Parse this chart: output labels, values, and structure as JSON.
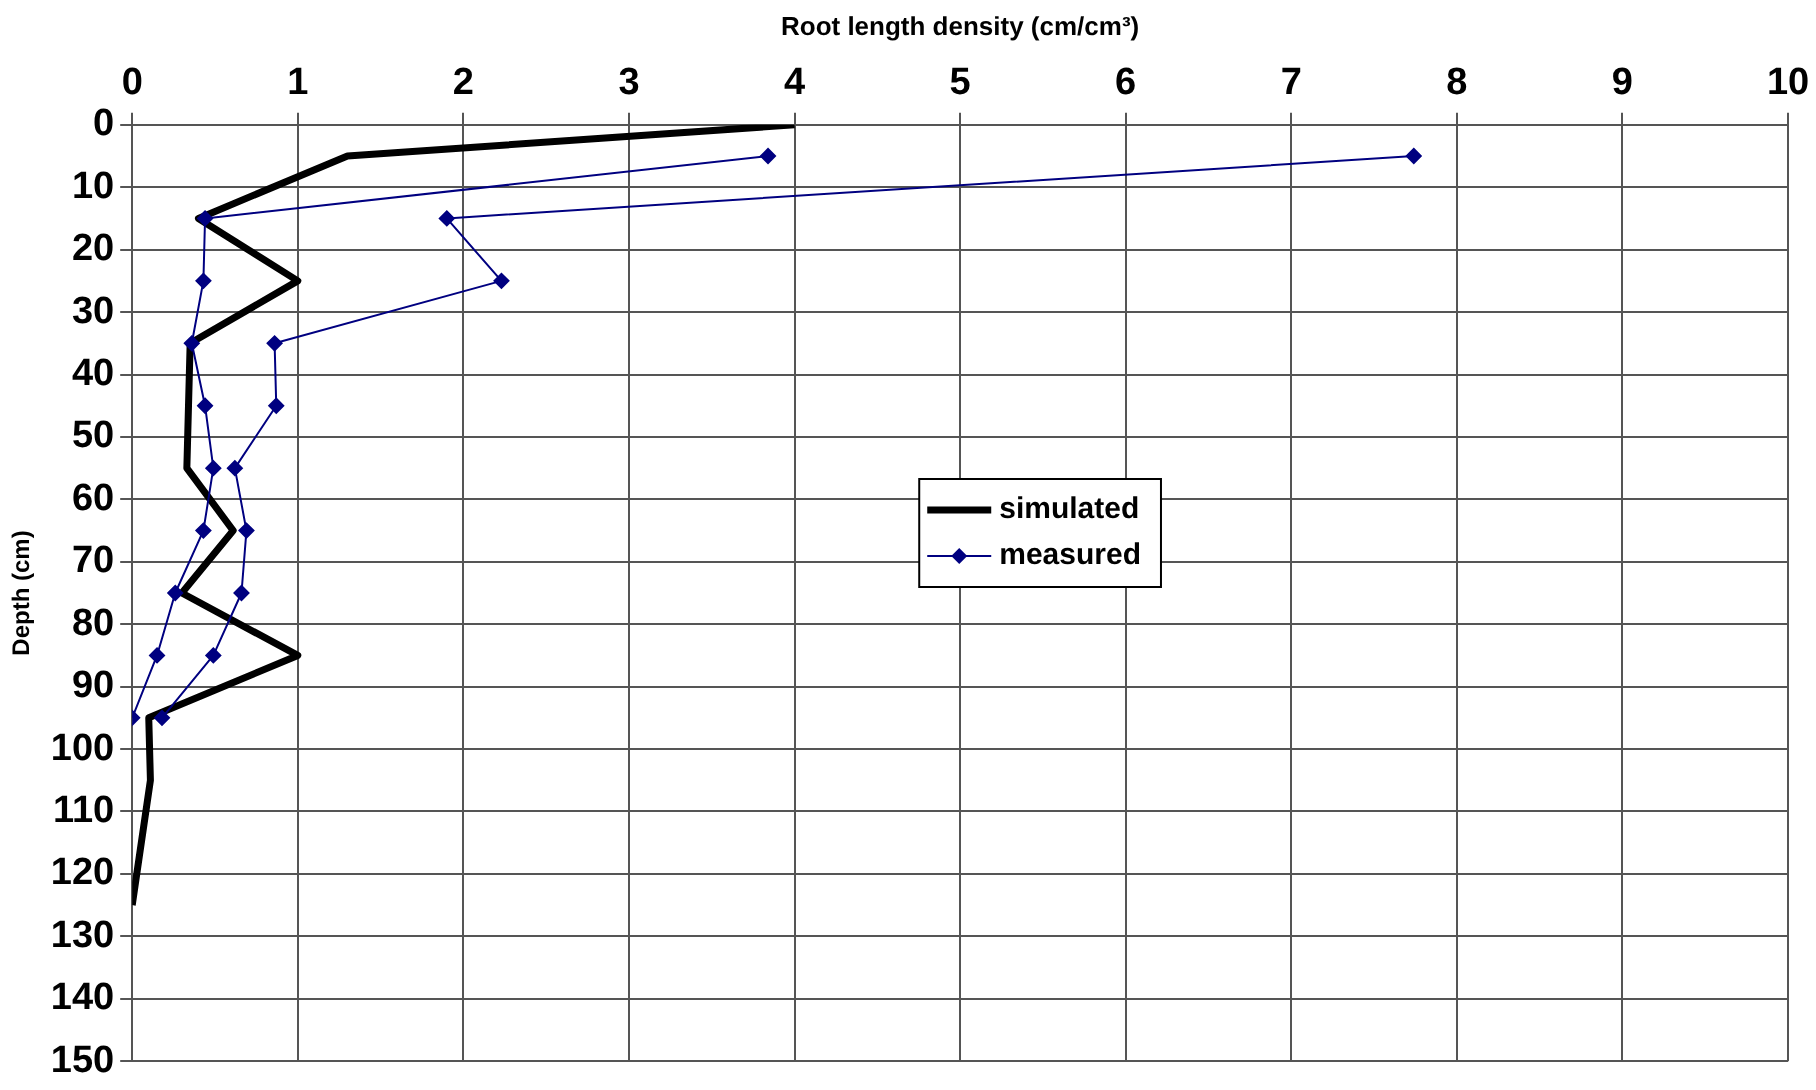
{
  "chart_data": {
    "type": "line",
    "xlabel": "Root length density (cm/cm³)",
    "ylabel": "Depth (cm)",
    "xlim": [
      0,
      10
    ],
    "xticks": [
      0,
      1,
      2,
      3,
      4,
      5,
      6,
      7,
      8,
      9,
      10
    ],
    "ylim": [
      150,
      0
    ],
    "yticks": [
      0,
      10,
      20,
      30,
      40,
      50,
      60,
      70,
      80,
      90,
      100,
      110,
      120,
      130,
      140,
      150
    ],
    "grid": true,
    "legend": "center",
    "series": [
      {
        "name": "simulated",
        "color": "#000000",
        "marker": "none",
        "x": [
          4.0,
          1.3,
          0.4,
          1.0,
          0.35,
          0.33,
          0.61,
          0.3,
          1.0,
          0.1,
          0.11,
          0.0
        ],
        "values": [
          0,
          5,
          15,
          25,
          35,
          55,
          65,
          75,
          85,
          95,
          105,
          125
        ]
      },
      {
        "name": "measured",
        "color": "#000080",
        "marker": "diamond",
        "x": [
          3.84,
          0.44,
          0.43,
          0.36,
          0.44,
          0.49,
          0.43,
          0.26,
          0.15,
          0.0
        ],
        "values": [
          5,
          15,
          25,
          35,
          45,
          55,
          65,
          75,
          85,
          95
        ]
      },
      {
        "color": "#000080",
        "marker": "diamond",
        "x": [
          7.74,
          1.9,
          2.23,
          0.86,
          0.87,
          0.62,
          0.69,
          0.66,
          0.49,
          0.18
        ],
        "values": [
          5,
          15,
          25,
          35,
          45,
          55,
          65,
          75,
          85,
          95
        ]
      }
    ]
  }
}
